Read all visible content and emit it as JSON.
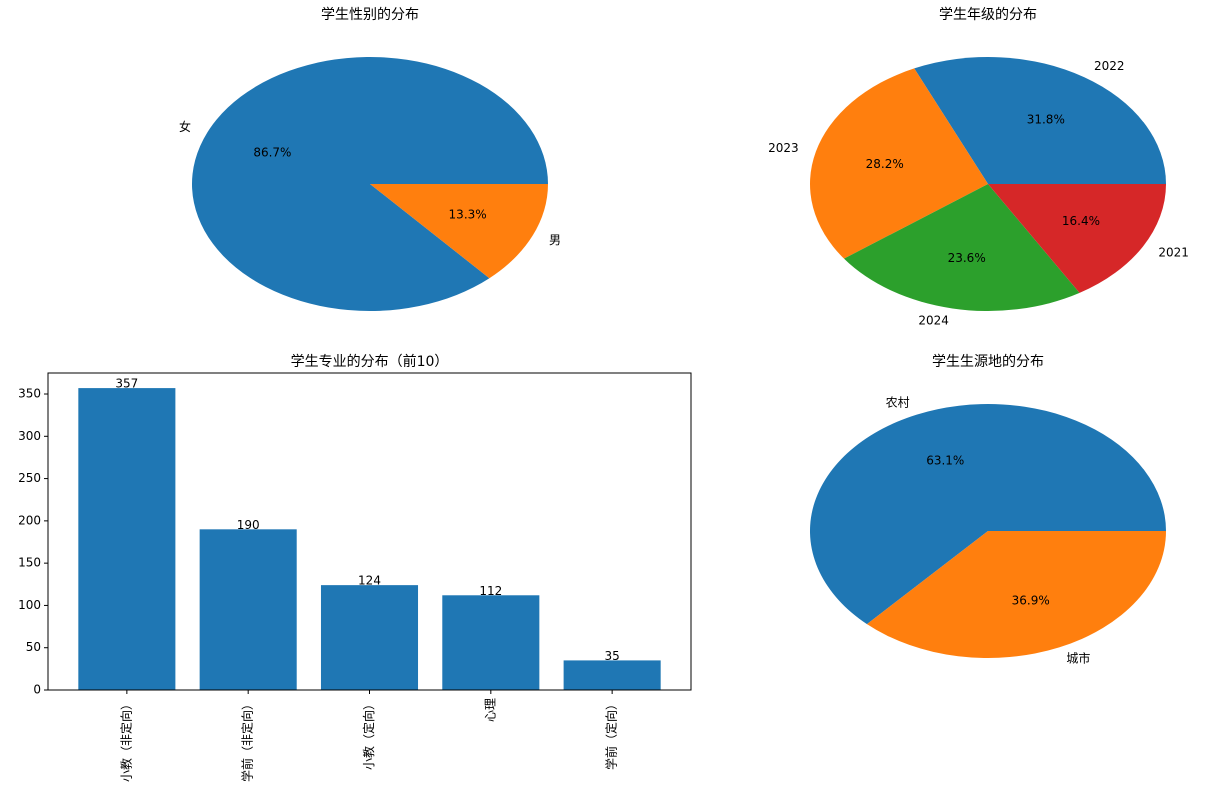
{
  "chart_data": [
    {
      "type": "pie",
      "title": "学生性别的分布",
      "labels": [
        "女",
        "男"
      ],
      "values": [
        86.7,
        13.3
      ],
      "value_labels": [
        "86.7%",
        "13.3%"
      ],
      "colors": [
        "#1f77b4",
        "#ff7f0e"
      ]
    },
    {
      "type": "pie",
      "title": "学生年级的分布",
      "labels": [
        "2022",
        "2023",
        "2024",
        "2021"
      ],
      "values": [
        31.8,
        28.2,
        23.6,
        16.4
      ],
      "value_labels": [
        "31.8%",
        "28.2%",
        "23.6%",
        "16.4%"
      ],
      "colors": [
        "#1f77b4",
        "#ff7f0e",
        "#2ca02c",
        "#d62728"
      ]
    },
    {
      "type": "bar",
      "title": "学生专业的分布（前10）",
      "categories": [
        "小教（非定向）",
        "学前（非定向）",
        "小教（定向）",
        "心理",
        "学前（定向）"
      ],
      "values": [
        357,
        190,
        124,
        112,
        35
      ],
      "color": "#1f77b4",
      "ylim": [
        0,
        374.85
      ],
      "yticks": [
        0,
        50,
        100,
        150,
        200,
        250,
        300,
        350
      ]
    },
    {
      "type": "pie",
      "title": "学生生源地的分布",
      "labels": [
        "农村",
        "城市"
      ],
      "values": [
        63.1,
        36.9
      ],
      "value_labels": [
        "63.1%",
        "36.9%"
      ],
      "colors": [
        "#1f77b4",
        "#ff7f0e"
      ]
    }
  ]
}
